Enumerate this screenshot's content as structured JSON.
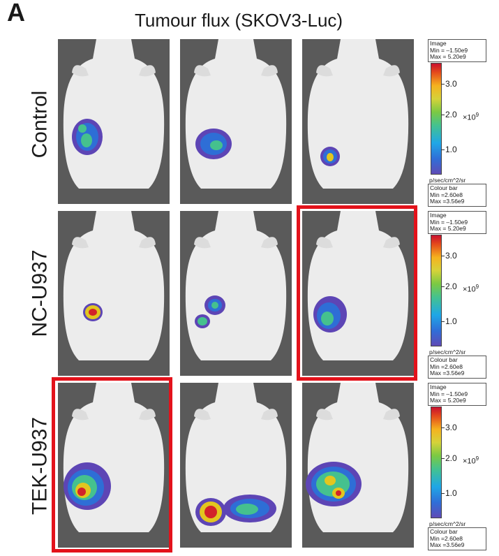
{
  "panel_letter": "A",
  "title": "Tumour flux (SKOV3-Luc)",
  "rows": [
    {
      "label": "Control",
      "highlight_col": -1
    },
    {
      "label": "NC-U937",
      "highlight_col": 2
    },
    {
      "label": "TEK-U937",
      "highlight_col": 0
    }
  ],
  "scale": {
    "image_box": {
      "title": "Image",
      "min": "Min = –1.50e9",
      "max": "Max = 5.20e9"
    },
    "ticks": [
      {
        "label": "3.0",
        "value": 3.0
      },
      {
        "label": "2.0",
        "value": 2.0
      },
      {
        "label": "1.0",
        "value": 1.0
      }
    ],
    "multiplier_base": "×10",
    "multiplier_exp": "9",
    "unit": "p/sec/cm^2/sr",
    "colour_box": {
      "title": "Colour bar",
      "min": "Min =2.60e8",
      "max": "Max =3.56e9"
    }
  },
  "colors": {
    "highlight": "#e3121b",
    "background_image": "#595959",
    "mouse_body": "#ececec"
  }
}
